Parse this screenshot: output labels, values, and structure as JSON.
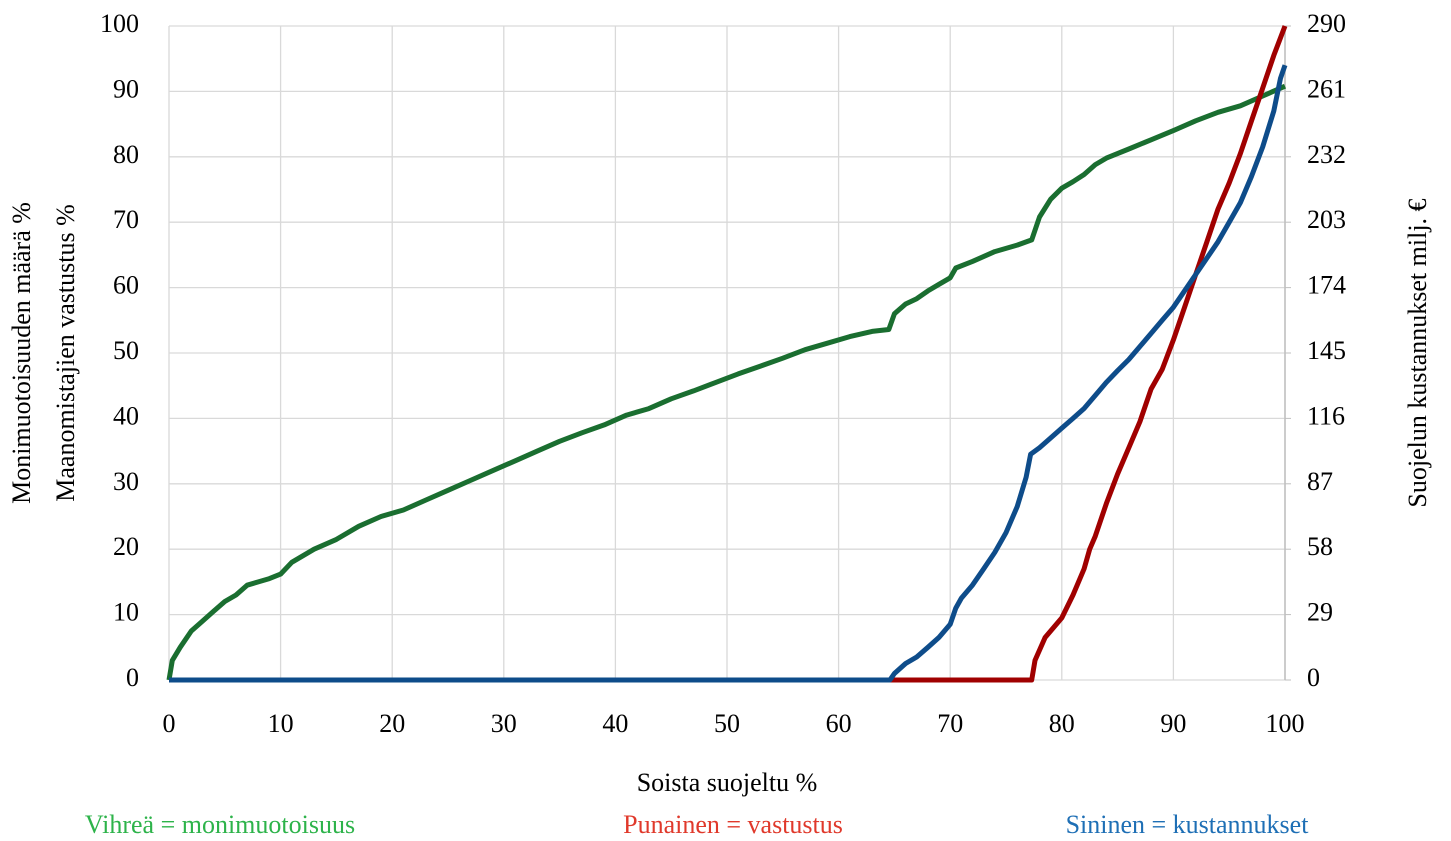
{
  "chart_data": {
    "type": "line",
    "ylabel": [
      "Monimuotoisuuden määrä %",
      "Maanomistajien vastustus %"
    ],
    "y2label": "Suojelun kustannukset milj. €",
    "xlabel": "Soista suojeltu %",
    "annotations": [
      {
        "text": "Vihreä = monimuotoisuus",
        "color": "#2db34a"
      },
      {
        "text": "Punainen = vastustus",
        "color": "#e0392b"
      },
      {
        "text": "Sininen = kustannukset",
        "color": "#1e6fb5"
      }
    ],
    "xlim": [
      0,
      100
    ],
    "xticks": [
      0,
      10,
      20,
      30,
      40,
      50,
      60,
      70,
      80,
      90,
      100
    ],
    "ylim": [
      0,
      100
    ],
    "yticks": [
      0,
      10,
      20,
      30,
      40,
      50,
      60,
      70,
      80,
      90,
      100
    ],
    "y2lim": [
      0,
      290
    ],
    "y2ticks": [
      0,
      29,
      58,
      87,
      116,
      145,
      174,
      203,
      232,
      261,
      290
    ],
    "grid": true,
    "series": [
      {
        "color": "#1a6e30",
        "axis": "y",
        "x": [
          0,
          0.3,
          1,
          2,
          3,
          4,
          5,
          6,
          7,
          8,
          9,
          10,
          11,
          13,
          15,
          17,
          19,
          21,
          23,
          25,
          27,
          29,
          31,
          33,
          35,
          37,
          39,
          41,
          43,
          45,
          47,
          49,
          51,
          53,
          55,
          57,
          59,
          61,
          63,
          64.5,
          65,
          66,
          67,
          68,
          69,
          70,
          70.5,
          72,
          74,
          76,
          77.3,
          78,
          79,
          80,
          81,
          82,
          83,
          84,
          86,
          88,
          90,
          92,
          94,
          96,
          98,
          100
        ],
        "values": [
          0,
          3,
          5,
          7.5,
          9,
          10.5,
          12,
          13,
          14.5,
          15,
          15.5,
          16.2,
          18,
          20,
          21.5,
          23.5,
          25,
          26,
          27.5,
          29,
          30.5,
          32,
          33.5,
          35,
          36.5,
          37.8,
          39,
          40.5,
          41.5,
          43,
          44.2,
          45.5,
          46.8,
          48,
          49.2,
          50.5,
          51.5,
          52.5,
          53.3,
          53.6,
          56,
          57.5,
          58.3,
          59.5,
          60.5,
          61.5,
          63,
          64,
          65.5,
          66.5,
          67.3,
          70.8,
          73.5,
          75.2,
          76.2,
          77.3,
          78.8,
          79.8,
          81.2,
          82.6,
          84,
          85.5,
          86.8,
          87.8,
          89.3,
          90.8
        ]
      },
      {
        "color": "#a00000",
        "axis": "y",
        "x": [
          0,
          77.3,
          77.6,
          78.5,
          80,
          81,
          82,
          82.5,
          83,
          84,
          85,
          86,
          87,
          88,
          89,
          90,
          91,
          92,
          93,
          94,
          95,
          96,
          97,
          98,
          99,
          100
        ],
        "values": [
          0,
          0,
          3,
          6.5,
          9.5,
          13,
          17,
          20,
          22,
          27,
          31.5,
          35.5,
          39.5,
          44.5,
          47.5,
          52,
          57,
          62,
          67,
          72,
          76,
          80.5,
          85.5,
          90.5,
          95.5,
          100
        ]
      },
      {
        "color": "#0e4c8a",
        "axis": "y2",
        "x": [
          0,
          64.6,
          65,
          66,
          67,
          68,
          69,
          70,
          70.5,
          71,
          72,
          73,
          74,
          75,
          76,
          76.8,
          77.2,
          78,
          79,
          80,
          81,
          82,
          83,
          84,
          85,
          86,
          87,
          88,
          89,
          90,
          91,
          92,
          93,
          94,
          95,
          96,
          97,
          98,
          99,
          99.6,
          100
        ],
        "values": [
          0,
          0,
          2.9,
          7.3,
          10.2,
          14.5,
          18.9,
          24.7,
          31.9,
          36.3,
          42.1,
          49.3,
          56.6,
          65.3,
          76.9,
          89.9,
          100.1,
          103,
          107.3,
          111.7,
          116,
          120.4,
          126.2,
          132,
          137.2,
          142.1,
          147.9,
          153.7,
          159.5,
          165.3,
          172.6,
          179.8,
          187.1,
          194.3,
          203,
          211.7,
          223.3,
          236.4,
          252.3,
          266.8,
          272.6
        ]
      }
    ]
  }
}
